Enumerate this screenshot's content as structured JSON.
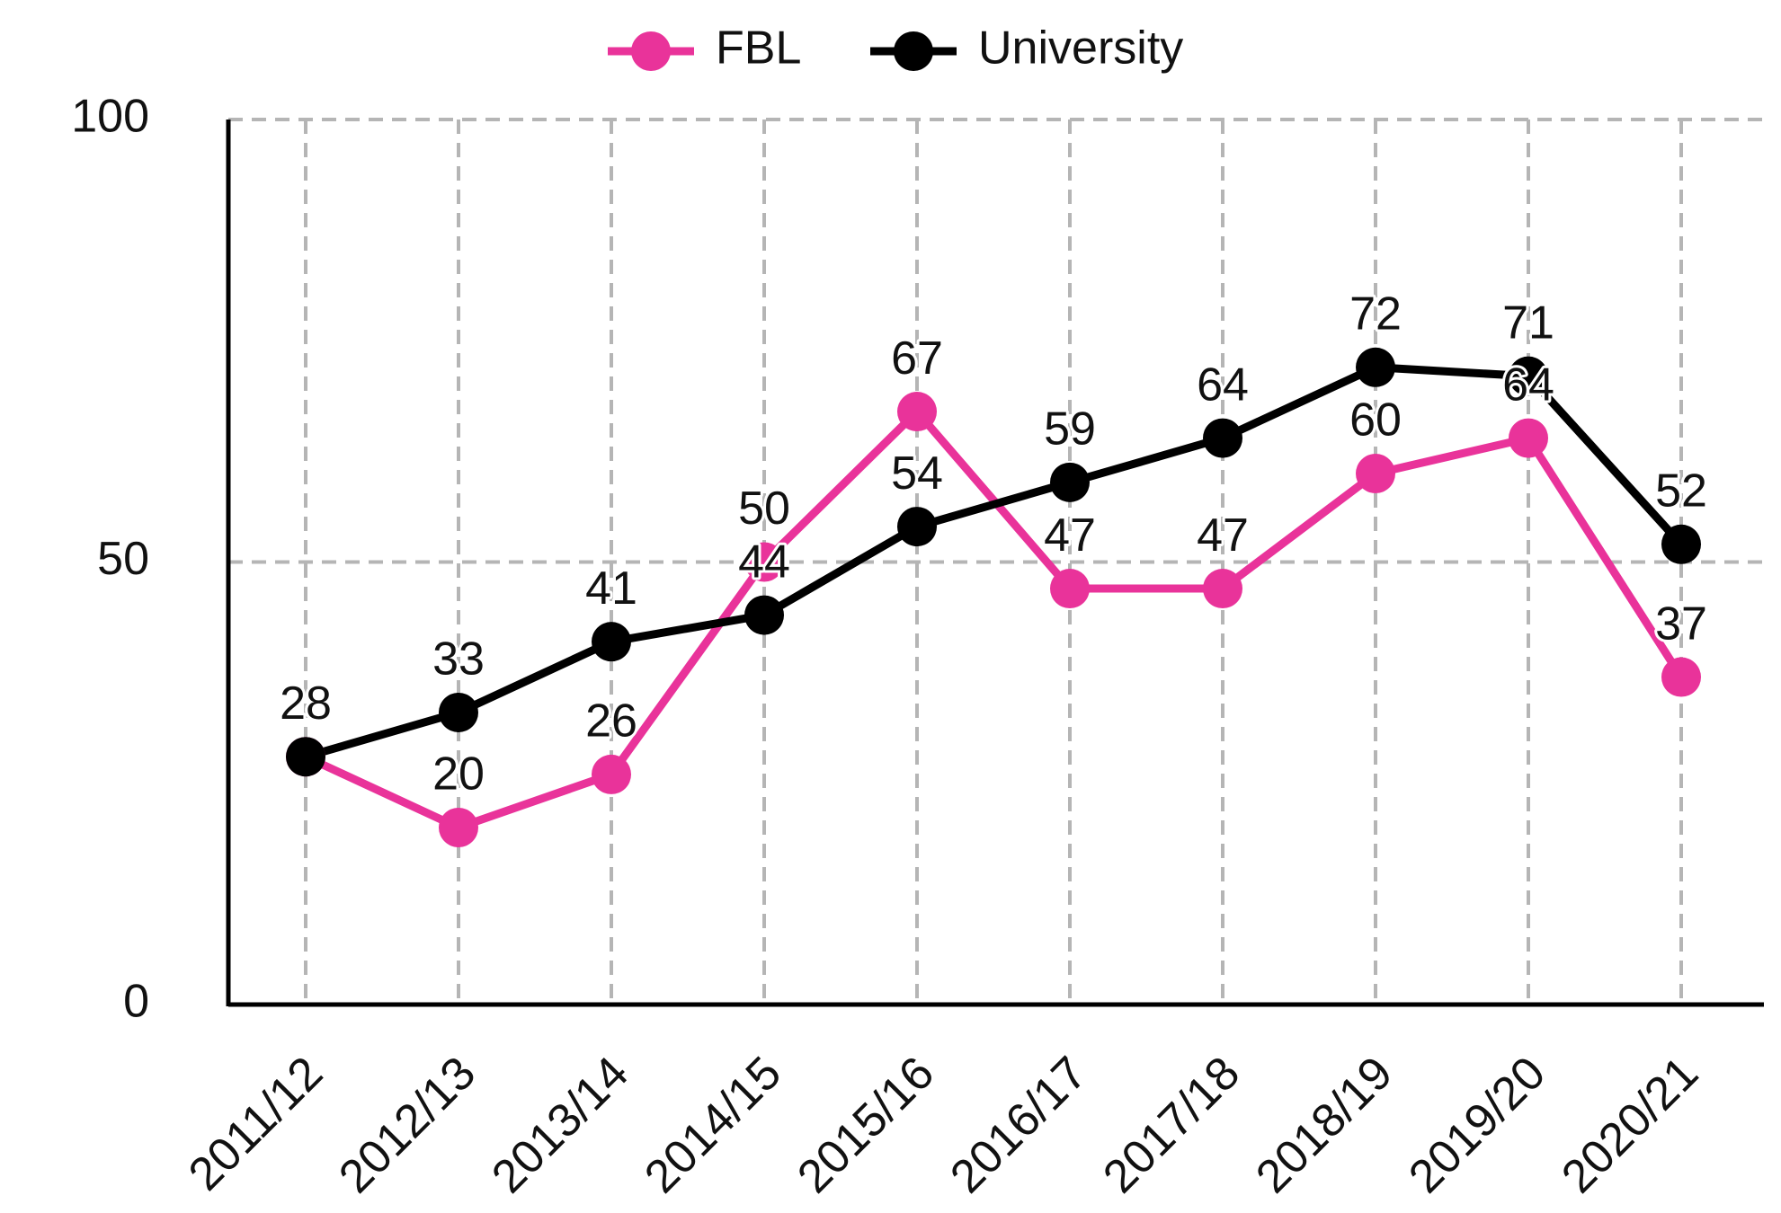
{
  "chart_data": {
    "type": "line",
    "categories": [
      "2011/12",
      "2012/13",
      "2013/14",
      "2014/15",
      "2015/16",
      "2016/17",
      "2017/18",
      "2018/19",
      "2019/20",
      "2020/21"
    ],
    "series": [
      {
        "name": "FBL",
        "color": "#e9339a",
        "values": [
          28,
          20,
          26,
          50,
          67,
          47,
          47,
          60,
          64,
          37
        ]
      },
      {
        "name": "University",
        "color": "#000000",
        "values": [
          28,
          33,
          41,
          44,
          54,
          59,
          64,
          72,
          71,
          52
        ]
      }
    ],
    "ylim": [
      0,
      100
    ],
    "yticks": [
      0,
      50,
      100
    ],
    "grid": true
  }
}
